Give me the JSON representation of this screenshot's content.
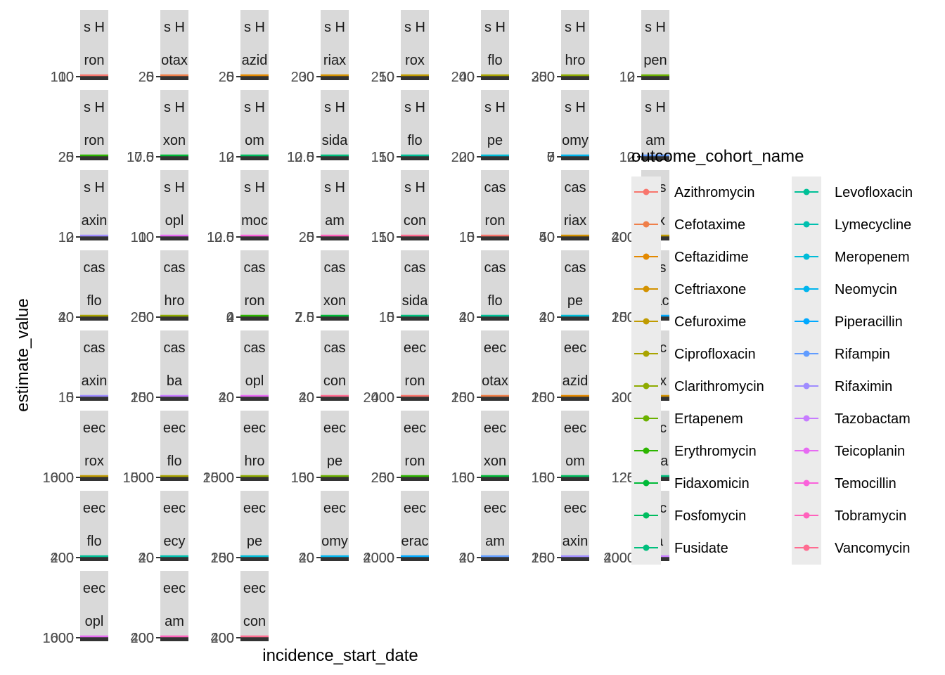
{
  "chart_data": {
    "type": "line",
    "xlabel": "incidence_start_date",
    "ylabel": "estimate_value",
    "legend": {
      "title": "outcome_cohort_name",
      "placement": "right"
    },
    "series": [
      {
        "name": "Azithromycin",
        "color": "#F8766D"
      },
      {
        "name": "Cefotaxime",
        "color": "#EF7F49"
      },
      {
        "name": "Ceftazidime",
        "color": "#E38900"
      },
      {
        "name": "Ceftriaxone",
        "color": "#D39200"
      },
      {
        "name": "Cefuroxime",
        "color": "#C09B00"
      },
      {
        "name": "Ciprofloxacin",
        "color": "#A9A400"
      },
      {
        "name": "Clarithromycin",
        "color": "#8EAB00"
      },
      {
        "name": "Ertapenem",
        "color": "#6BB100"
      },
      {
        "name": "Erythromycin",
        "color": "#2DB600"
      },
      {
        "name": "Fidaxomicin",
        "color": "#00BA38"
      },
      {
        "name": "Fosfomycin",
        "color": "#00BD5F"
      },
      {
        "name": "Fusidate",
        "color": "#00BF7D"
      },
      {
        "name": "Levofloxacin",
        "color": "#00C097"
      },
      {
        "name": "Lymecycline",
        "color": "#00C0AF"
      },
      {
        "name": "Meropenem",
        "color": "#00BCD8"
      },
      {
        "name": "Neomycin",
        "color": "#00B5EE"
      },
      {
        "name": "Piperacillin",
        "color": "#00A9FF"
      },
      {
        "name": "Rifampin",
        "color": "#619CFF"
      },
      {
        "name": "Rifaximin",
        "color": "#9F8CFF"
      },
      {
        "name": "Tazobactam",
        "color": "#C77CFF"
      },
      {
        "name": "Teicoplanin",
        "color": "#E76BF3"
      },
      {
        "name": "Temocillin",
        "color": "#FA62DB"
      },
      {
        "name": "Tobramycin",
        "color": "#FF62BC"
      },
      {
        "name": "Vancomycin",
        "color": "#FF6C91"
      }
    ],
    "panels": [
      {
        "strip1": "s H",
        "strip2": "ron",
        "series": "Azithromycin",
        "ticks": [
          "100",
          "10",
          "0"
        ]
      },
      {
        "strip1": "s H",
        "strip2": "otax",
        "series": "Cefotaxime",
        "ticks": [
          "20",
          "5",
          "0"
        ]
      },
      {
        "strip1": "s H",
        "strip2": "azid",
        "series": "Ceftazidime",
        "ticks": [
          "20",
          "5",
          "0"
        ]
      },
      {
        "strip1": "s H",
        "strip2": "riax",
        "series": "Ceftriaxone",
        "ticks": [
          "200",
          "30",
          "0"
        ]
      },
      {
        "strip1": "s H",
        "strip2": "rox",
        "series": "Cefuroxime",
        "ticks": [
          "250",
          "10",
          "0"
        ]
      },
      {
        "strip1": "s H",
        "strip2": "flo",
        "series": "Ciprofloxacin",
        "ticks": [
          "200",
          "40",
          "0"
        ]
      },
      {
        "strip1": "s H",
        "strip2": "hro",
        "series": "Clarithromycin",
        "ticks": [
          "300",
          "250",
          "0"
        ]
      },
      {
        "strip1": "s H",
        "strip2": "pen",
        "series": "Ertapenem",
        "ticks": [
          "10",
          "2",
          "0"
        ]
      },
      {
        "strip1": "s H",
        "strip2": "ron",
        "series": "Erythromycin",
        "ticks": [
          "20",
          "25",
          "0"
        ]
      },
      {
        "strip1": "s H",
        "strip2": "xon",
        "series": "Fidaxomicin",
        "ticks": [
          "17.5",
          "10.0",
          "0"
        ]
      },
      {
        "strip1": "s H",
        "strip2": "om",
        "series": "Fosfomycin",
        "ticks": [
          "10",
          "2",
          "0"
        ]
      },
      {
        "strip1": "s H",
        "strip2": "sida",
        "series": "Fusidate",
        "ticks": [
          "12.5",
          "10.0",
          "0"
        ]
      },
      {
        "strip1": "s H",
        "strip2": "flo",
        "series": "Levofloxacin",
        "ticks": [
          "150",
          "10",
          "0"
        ]
      },
      {
        "strip1": "s H",
        "strip2": "pe",
        "series": "Meropenem",
        "ticks": [
          "200",
          "20",
          "0"
        ]
      },
      {
        "strip1": "s H",
        "strip2": "omy",
        "series": "Neomycin",
        "ticks": [
          "5",
          "7",
          "0"
        ]
      },
      {
        "strip1": "s H",
        "strip2": "am",
        "series": "Rifampin",
        "ticks": [
          "10",
          "2",
          "0"
        ]
      },
      {
        "strip1": "s H",
        "strip2": "axin",
        "series": "Rifaximin",
        "ticks": [
          "10",
          "2",
          "0"
        ]
      },
      {
        "strip1": "s H",
        "strip2": "opl",
        "series": "Teicoplanin",
        "ticks": [
          "100",
          "10",
          "0"
        ]
      },
      {
        "strip1": "s H",
        "strip2": "moc",
        "series": "Temocillin",
        "ticks": [
          "12.5",
          "10.0",
          "0"
        ]
      },
      {
        "strip1": "s H",
        "strip2": "am",
        "series": "Tobramycin",
        "ticks": [
          "20",
          "5",
          "0"
        ]
      },
      {
        "strip1": "s H",
        "strip2": "con",
        "series": "Vancomycin",
        "ticks": [
          "150",
          "10",
          "0"
        ]
      },
      {
        "strip1": "cas",
        "strip2": "ron",
        "series": "Azithromycin",
        "ticks": [
          "10",
          "5",
          "0"
        ]
      },
      {
        "strip1": "cas",
        "strip2": "riax",
        "series": "Ceftriaxone",
        "ticks": [
          "50",
          "40",
          "0"
        ]
      },
      {
        "strip1": "cas",
        "strip2": "rox",
        "series": "Cefuroxime",
        "ticks": [
          "400",
          "200",
          "0"
        ]
      },
      {
        "strip1": "cas",
        "strip2": "flo",
        "series": "Ciprofloxacin",
        "ticks": [
          "20",
          "40",
          "0"
        ]
      },
      {
        "strip1": "cas",
        "strip2": "hro",
        "series": "Clarithromycin",
        "ticks": [
          "200",
          "50",
          "0"
        ]
      },
      {
        "strip1": "cas",
        "strip2": "ron",
        "series": "Erythromycin",
        "ticks": [
          "2",
          "4",
          "0"
        ]
      },
      {
        "strip1": "cas",
        "strip2": "xon",
        "series": "Fidaxomicin",
        "ticks": [
          "7.5",
          "2.5",
          "0"
        ]
      },
      {
        "strip1": "cas",
        "strip2": "sida",
        "series": "Fusidate",
        "ticks": [
          "10",
          "5",
          "0"
        ]
      },
      {
        "strip1": "cas",
        "strip2": "flo",
        "series": "Levofloxacin",
        "ticks": [
          "20",
          "40",
          "0"
        ]
      },
      {
        "strip1": "cas",
        "strip2": "pe",
        "series": "Meropenem",
        "ticks": [
          "20",
          "40",
          "0"
        ]
      },
      {
        "strip1": "cas",
        "strip2": "erac",
        "series": "Piperacillin",
        "ticks": [
          "150",
          "200",
          "0"
        ]
      },
      {
        "strip1": "cas",
        "strip2": "axin",
        "series": "Rifaximin",
        "ticks": [
          "10",
          "5",
          "0"
        ]
      },
      {
        "strip1": "cas",
        "strip2": "ba",
        "series": "Tazobactam",
        "ticks": [
          "150",
          "200",
          "0"
        ]
      },
      {
        "strip1": "cas",
        "strip2": "opl",
        "series": "Teicoplanin",
        "ticks": [
          "20",
          "40",
          "0"
        ]
      },
      {
        "strip1": "cas",
        "strip2": "con",
        "series": "Vancomycin",
        "ticks": [
          "20",
          "40",
          "0"
        ]
      },
      {
        "strip1": "eec",
        "strip2": "ron",
        "series": "Azithromycin",
        "ticks": [
          "2000",
          "400",
          "0"
        ]
      },
      {
        "strip1": "eec",
        "strip2": "otax",
        "series": "Cefotaxime",
        "ticks": [
          "150",
          "200",
          "0"
        ]
      },
      {
        "strip1": "eec",
        "strip2": "azid",
        "series": "Ceftazidime",
        "ticks": [
          "150",
          "200",
          "0"
        ]
      },
      {
        "strip1": "eec",
        "strip2": "riax",
        "series": "Ceftriaxone",
        "ticks": [
          "300",
          "200",
          "0"
        ]
      },
      {
        "strip1": "eec",
        "strip2": "rox",
        "series": "Cefuroxime",
        "ticks": [
          "1600",
          "1000",
          "0"
        ]
      },
      {
        "strip1": "eec",
        "strip2": "flo",
        "series": "Ciprofloxacin",
        "ticks": [
          "1500",
          "1000",
          "0"
        ]
      },
      {
        "strip1": "eec",
        "strip2": "hro",
        "series": "Clarithromycin",
        "ticks": [
          "2500",
          "1000",
          "0"
        ]
      },
      {
        "strip1": "eec",
        "strip2": "pe",
        "series": "Ertapenem",
        "ticks": [
          "150",
          "100",
          "0"
        ]
      },
      {
        "strip1": "eec",
        "strip2": "ron",
        "series": "Erythromycin",
        "ticks": [
          "250",
          "200",
          "0"
        ]
      },
      {
        "strip1": "eec",
        "strip2": "xon",
        "series": "Fidaxomicin",
        "ticks": [
          "150",
          "100",
          "0"
        ]
      },
      {
        "strip1": "eec",
        "strip2": "om",
        "series": "Fosfomycin",
        "ticks": [
          "150",
          "100",
          "0"
        ]
      },
      {
        "strip1": "eec",
        "strip2": "sida",
        "series": "Fusidate",
        "ticks": [
          "125",
          "20",
          "0"
        ]
      },
      {
        "strip1": "eec",
        "strip2": "flo",
        "series": "Levofloxacin",
        "ticks": [
          "400",
          "200",
          "0"
        ]
      },
      {
        "strip1": "eec",
        "strip2": "ecy",
        "series": "Lymecycline",
        "ticks": [
          "40",
          "20",
          "0"
        ]
      },
      {
        "strip1": "eec",
        "strip2": "pe",
        "series": "Meropenem",
        "ticks": [
          "150",
          "200",
          "0"
        ]
      },
      {
        "strip1": "eec",
        "strip2": "omy",
        "series": "Neomycin",
        "ticks": [
          "20",
          "40",
          "0"
        ]
      },
      {
        "strip1": "eec",
        "strip2": "erac",
        "series": "Piperacillin",
        "ticks": [
          "2000",
          "4000",
          "0"
        ]
      },
      {
        "strip1": "eec",
        "strip2": "am",
        "series": "Rifampin",
        "ticks": [
          "20",
          "40",
          "0"
        ]
      },
      {
        "strip1": "eec",
        "strip2": "axin",
        "series": "Rifaximin",
        "ticks": [
          "150",
          "200",
          "0"
        ]
      },
      {
        "strip1": "eec",
        "strip2": "ba",
        "series": "Tazobactam",
        "ticks": [
          "2000",
          "4000",
          "0"
        ]
      },
      {
        "strip1": "eec",
        "strip2": "opl",
        "series": "Teicoplanin",
        "ticks": [
          "1600",
          "1000",
          "0"
        ]
      },
      {
        "strip1": "eec",
        "strip2": "am",
        "series": "Tobramycin",
        "ticks": [
          "200",
          "400",
          "0"
        ]
      },
      {
        "strip1": "eec",
        "strip2": "con",
        "series": "Vancomycin",
        "ticks": [
          "200",
          "400",
          "0"
        ]
      }
    ]
  }
}
